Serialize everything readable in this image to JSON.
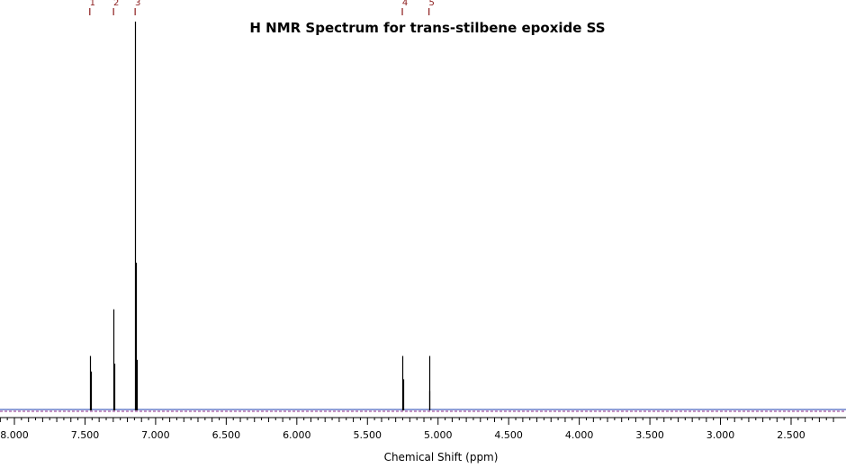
{
  "chart_data": {
    "type": "line",
    "title": "H NMR Spectrum for trans-stilbene epoxide SS",
    "xlabel": "Chemical Shift (ppm)",
    "ylabel": "",
    "x_reversed": true,
    "xlim": [
      8.1,
      2.2
    ],
    "ylim": [
      0,
      1.0
    ],
    "grid": false,
    "x_ticks": [
      8.0,
      7.5,
      7.0,
      6.5,
      6.0,
      5.5,
      5.0,
      4.5,
      4.0,
      3.5,
      3.0,
      2.5
    ],
    "x_tick_labels": [
      "8.000",
      "7.500",
      "7.000",
      "6.500",
      "6.000",
      "5.500",
      "5.000",
      "4.500",
      "4.000",
      "3.500",
      "3.000",
      "2.500"
    ],
    "peaks": [
      {
        "shift": 7.466,
        "intensity": 0.14
      },
      {
        "shift": 7.461,
        "intensity": 0.1
      },
      {
        "shift": 7.298,
        "intensity": 0.26
      },
      {
        "shift": 7.292,
        "intensity": 0.12
      },
      {
        "shift": 7.145,
        "intensity": 1.0
      },
      {
        "shift": 7.14,
        "intensity": 0.38
      },
      {
        "shift": 7.135,
        "intensity": 0.13
      },
      {
        "shift": 5.253,
        "intensity": 0.14
      },
      {
        "shift": 5.248,
        "intensity": 0.08
      },
      {
        "shift": 5.064,
        "intensity": 0.14
      },
      {
        "shift": 5.059,
        "intensity": 0.05
      }
    ],
    "peak_labels": [
      {
        "label": "1",
        "shift": 7.466
      },
      {
        "label": "2",
        "shift": 7.298
      },
      {
        "label": "3",
        "shift": 7.145
      },
      {
        "label": "4",
        "shift": 5.253
      },
      {
        "label": "5",
        "shift": 5.064
      }
    ],
    "colors": {
      "spectrum": "#000000",
      "baseline_dashed": "#8a2a8a",
      "baseline_solid": "#1f3fb0",
      "peak_label": "#8b1a1a",
      "axis": "#000000"
    }
  }
}
